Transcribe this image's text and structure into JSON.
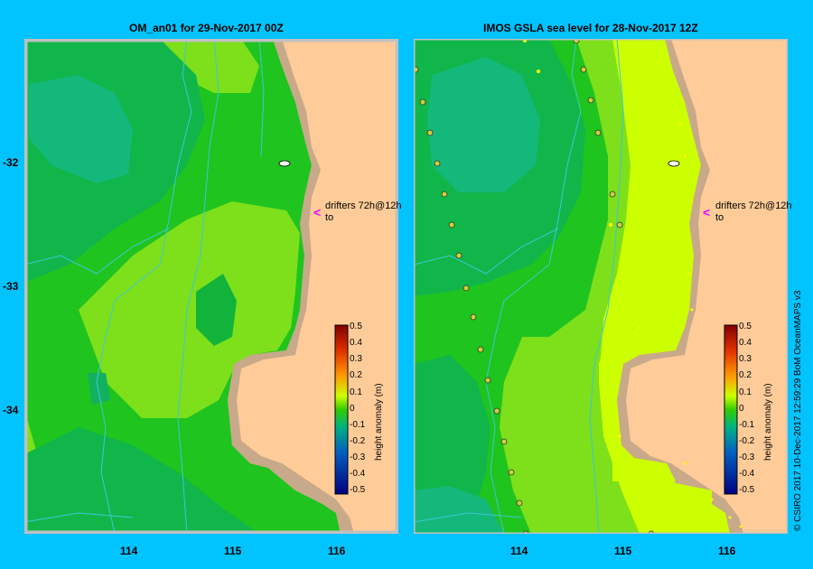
{
  "left_panel": {
    "title": "OM_an01  for 29-Nov-2017 00Z",
    "annotation_line1": "drifters 72h@12h",
    "annotation_line2": "to"
  },
  "right_panel": {
    "title": "IMOS GSLA sea level  for 28-Nov-2017 12Z",
    "annotation_line1": "drifters 72h@12h",
    "annotation_line2": "to"
  },
  "axes": {
    "x_ticks": [
      "114",
      "115",
      "116"
    ],
    "y_ticks": [
      "-32",
      "-33",
      "-34"
    ]
  },
  "colorbar": {
    "title": "height anomaly (m)",
    "labels": [
      "0.5",
      "0.4",
      "0.3",
      "0.2",
      "0.1",
      "0",
      "-0.1",
      "-0.2",
      "-0.3",
      "-0.4",
      "-0.5"
    ]
  },
  "credit": "© CSIRO 2017   10-Dec-2017 12:59:29 BoM OceanMAPS v3",
  "colors": {
    "background": "#00c3ff",
    "land": "#ffcc99",
    "coast": "#c8a98a",
    "drifter_arrow": "#ff00ff"
  }
}
